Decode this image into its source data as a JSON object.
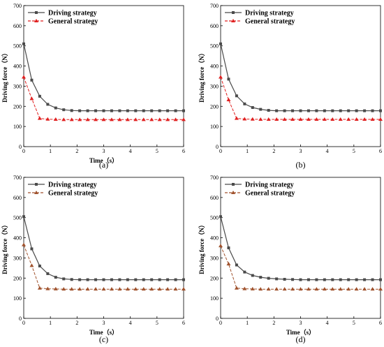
{
  "chart_data": [
    {
      "type": "line",
      "panel_label": "(a)",
      "xlabel": "Time（s）",
      "ylabel": "Driving force（N）",
      "xlim": [
        0,
        6
      ],
      "ylim": [
        0,
        700
      ],
      "x_ticks": [
        0,
        1,
        2,
        3,
        4,
        5,
        6
      ],
      "y_ticks": [
        0,
        100,
        200,
        300,
        400,
        500,
        600,
        700
      ],
      "grid": false,
      "legend_position": "top-left",
      "series": [
        {
          "name": "Driving strategy",
          "color": "#4a4a4a",
          "marker": "square",
          "x": [
            0,
            0.3,
            0.6,
            0.9,
            1.2,
            1.5,
            1.8,
            2.1,
            2.4,
            2.7,
            3.0,
            3.3,
            3.6,
            3.9,
            4.2,
            4.5,
            4.8,
            5.1,
            5.4,
            5.7,
            6.0
          ],
          "y": [
            510,
            330,
            250,
            210,
            192,
            183,
            179,
            178,
            178,
            178,
            178,
            178,
            178,
            178,
            178,
            178,
            178,
            178,
            178,
            178,
            178
          ]
        },
        {
          "name": "General strategy",
          "color": "#e02020",
          "marker": "triangle",
          "x": [
            0,
            0.3,
            0.6,
            0.9,
            1.2,
            1.5,
            1.8,
            2.1,
            2.4,
            2.7,
            3.0,
            3.3,
            3.6,
            3.9,
            4.2,
            4.5,
            4.8,
            5.1,
            5.4,
            5.7,
            6.0
          ],
          "y": [
            345,
            238,
            140,
            136,
            135,
            134,
            134,
            134,
            134,
            134,
            134,
            134,
            134,
            134,
            134,
            134,
            134,
            134,
            134,
            134,
            134
          ]
        }
      ]
    },
    {
      "type": "line",
      "panel_label": "(b)",
      "xlabel": "",
      "ylabel": "Driving force（N）",
      "xlim": [
        0,
        6
      ],
      "ylim": [
        0,
        700
      ],
      "x_ticks": [
        0,
        1,
        2,
        3,
        4,
        5,
        6
      ],
      "y_ticks": [
        0,
        100,
        200,
        300,
        400,
        500,
        600,
        700
      ],
      "grid": false,
      "legend_position": "top-left",
      "series": [
        {
          "name": "Driving strategy",
          "color": "#4a4a4a",
          "marker": "square",
          "x": [
            0,
            0.3,
            0.6,
            0.9,
            1.2,
            1.5,
            1.8,
            2.1,
            2.4,
            2.7,
            3.0,
            3.3,
            3.6,
            3.9,
            4.2,
            4.5,
            4.8,
            5.1,
            5.4,
            5.7,
            6.0
          ],
          "y": [
            510,
            335,
            252,
            212,
            194,
            185,
            180,
            178,
            178,
            178,
            178,
            178,
            178,
            178,
            178,
            178,
            178,
            178,
            178,
            178,
            178
          ]
        },
        {
          "name": "General strategy",
          "color": "#e02020",
          "marker": "triangle",
          "x": [
            0,
            0.3,
            0.6,
            0.9,
            1.2,
            1.5,
            1.8,
            2.1,
            2.4,
            2.7,
            3.0,
            3.3,
            3.6,
            3.9,
            4.2,
            4.5,
            4.8,
            5.1,
            5.4,
            5.7,
            6.0
          ],
          "y": [
            345,
            232,
            140,
            137,
            136,
            135,
            135,
            135,
            135,
            135,
            135,
            135,
            135,
            135,
            135,
            135,
            135,
            135,
            135,
            135,
            135
          ]
        }
      ]
    },
    {
      "type": "line",
      "panel_label": "(c)",
      "xlabel": "Time（s）",
      "ylabel": "Driving force（N）",
      "xlim": [
        0,
        6
      ],
      "ylim": [
        0,
        700
      ],
      "x_ticks": [
        0,
        1,
        2,
        3,
        4,
        5,
        6
      ],
      "y_ticks": [
        0,
        100,
        200,
        300,
        400,
        500,
        600,
        700
      ],
      "grid": false,
      "legend_position": "top-left",
      "series": [
        {
          "name": "Driving strategy",
          "color": "#4a4a4a",
          "marker": "square",
          "x": [
            0,
            0.3,
            0.6,
            0.9,
            1.2,
            1.5,
            1.8,
            2.1,
            2.4,
            2.7,
            3.0,
            3.3,
            3.6,
            3.9,
            4.2,
            4.5,
            4.8,
            5.1,
            5.4,
            5.7,
            6.0
          ],
          "y": [
            505,
            345,
            260,
            222,
            204,
            196,
            193,
            192,
            192,
            192,
            192,
            192,
            192,
            192,
            192,
            192,
            192,
            192,
            192,
            192,
            192
          ]
        },
        {
          "name": "General strategy",
          "color": "#a0522d",
          "marker": "triangle",
          "x": [
            0,
            0.3,
            0.6,
            0.9,
            1.2,
            1.5,
            1.8,
            2.1,
            2.4,
            2.7,
            3.0,
            3.3,
            3.6,
            3.9,
            4.2,
            4.5,
            4.8,
            5.1,
            5.4,
            5.7,
            6.0
          ],
          "y": [
            365,
            262,
            150,
            147,
            146,
            145,
            145,
            145,
            145,
            145,
            145,
            145,
            145,
            145,
            145,
            145,
            145,
            145,
            145,
            145,
            145
          ]
        }
      ]
    },
    {
      "type": "line",
      "panel_label": "(d)",
      "xlabel": "Time（s）",
      "ylabel": "Driving force（N）",
      "xlim": [
        0,
        6
      ],
      "ylim": [
        0,
        700
      ],
      "x_ticks": [
        0,
        1,
        2,
        3,
        4,
        5,
        6
      ],
      "y_ticks": [
        0,
        100,
        200,
        300,
        400,
        500,
        600,
        700
      ],
      "grid": false,
      "legend_position": "top-left",
      "series": [
        {
          "name": "Driving strategy",
          "color": "#4a4a4a",
          "marker": "square",
          "x": [
            0,
            0.3,
            0.6,
            0.9,
            1.2,
            1.5,
            1.8,
            2.1,
            2.4,
            2.7,
            3.0,
            3.3,
            3.6,
            3.9,
            4.2,
            4.5,
            4.8,
            5.1,
            5.4,
            5.7,
            6.0
          ],
          "y": [
            505,
            350,
            265,
            230,
            213,
            204,
            199,
            196,
            194,
            193,
            192,
            192,
            192,
            192,
            192,
            192,
            192,
            192,
            192,
            192,
            192
          ]
        },
        {
          "name": "General strategy",
          "color": "#a0522d",
          "marker": "triangle",
          "x": [
            0,
            0.3,
            0.6,
            0.9,
            1.2,
            1.5,
            1.8,
            2.1,
            2.4,
            2.7,
            3.0,
            3.3,
            3.6,
            3.9,
            4.2,
            4.5,
            4.8,
            5.1,
            5.4,
            5.7,
            6.0
          ],
          "y": [
            360,
            270,
            150,
            147,
            146,
            145,
            145,
            145,
            145,
            145,
            145,
            145,
            145,
            145,
            145,
            145,
            145,
            145,
            145,
            145,
            145
          ]
        }
      ]
    }
  ]
}
